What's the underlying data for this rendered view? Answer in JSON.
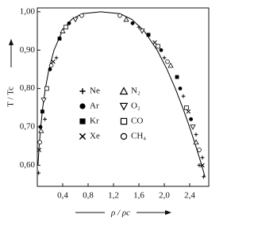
{
  "chart_data": {
    "type": "scatter",
    "xlabel": "ρ / ρc",
    "ylabel": "T / Tc",
    "xlim": [
      0,
      2.7
    ],
    "ylim": [
      0.545,
      1.01
    ],
    "xticks": [
      {
        "value": 0.4,
        "label": "0,4"
      },
      {
        "value": 0.8,
        "label": "0,8"
      },
      {
        "value": 1.2,
        "label": "1,2"
      },
      {
        "value": 1.6,
        "label": "1,6"
      },
      {
        "value": 2.0,
        "label": "2,0"
      },
      {
        "value": 2.4,
        "label": "2,4"
      }
    ],
    "yticks": [
      {
        "value": 0.6,
        "label": "0,60"
      },
      {
        "value": 0.7,
        "label": "0,70"
      },
      {
        "value": 0.8,
        "label": "0,80"
      },
      {
        "value": 0.9,
        "label": "0,90"
      },
      {
        "value": 1.0,
        "label": "1,00"
      }
    ],
    "curve": {
      "color": "#000000",
      "x": [
        0.011,
        0.029,
        0.054,
        0.085,
        0.127,
        0.183,
        0.263,
        0.393,
        0.54,
        0.705,
        1.0,
        1.303,
        1.49,
        1.682,
        1.887,
        2.042,
        2.173,
        2.29,
        2.397,
        2.496,
        2.589,
        2.64
      ],
      "y": [
        0.6,
        0.65,
        0.7,
        0.75,
        0.8,
        0.85,
        0.9,
        0.95,
        0.98,
        0.995,
        1.0,
        0.995,
        0.98,
        0.95,
        0.9,
        0.85,
        0.8,
        0.75,
        0.7,
        0.65,
        0.6,
        0.57
      ]
    },
    "series": [
      {
        "name": "Ne",
        "marker": "plus",
        "color": "#000000",
        "x": [
          0.02,
          0.12,
          0.3,
          1.6,
          2.0,
          2.3,
          2.5,
          2.6,
          2.55,
          2.62
        ],
        "y": [
          0.58,
          0.72,
          0.88,
          0.96,
          0.88,
          0.78,
          0.68,
          0.62,
          0.6,
          0.57
        ]
      },
      {
        "name": "Ar",
        "marker": "dot",
        "color": "#000000",
        "x": [
          0.05,
          0.2,
          0.5,
          1.5,
          1.95,
          2.25,
          2.42
        ],
        "y": [
          0.7,
          0.85,
          0.97,
          0.97,
          0.9,
          0.8,
          0.72
        ]
      },
      {
        "name": "Kr",
        "marker": "square",
        "color": "#000000",
        "x": [
          0.08,
          0.35,
          1.75,
          2.2
        ],
        "y": [
          0.74,
          0.93,
          0.94,
          0.83
        ]
      },
      {
        "name": "Xe",
        "marker": "cross",
        "color": "#000000",
        "x": [
          0.03,
          0.25,
          1.85,
          2.38,
          2.6
        ],
        "y": [
          0.64,
          0.87,
          0.92,
          0.74,
          0.6
        ]
      },
      {
        "name": "N₂",
        "marker": "triangle",
        "color": "#000000",
        "x": [
          0.06,
          0.4,
          1.4,
          2.1,
          2.5
        ],
        "y": [
          0.69,
          0.95,
          0.98,
          0.86,
          0.66
        ]
      },
      {
        "name": "O₂",
        "marker": "triangle-down",
        "color": "#000000",
        "x": [
          0.1,
          0.6,
          1.65,
          2.45
        ],
        "y": [
          0.77,
          0.98,
          0.95,
          0.7
        ]
      },
      {
        "name": "CO",
        "marker": "open-square",
        "color": "#000000",
        "x": [
          0.15,
          0.45,
          1.9,
          2.35
        ],
        "y": [
          0.8,
          0.96,
          0.91,
          0.75
        ]
      },
      {
        "name": "CH₄",
        "marker": "circle",
        "color": "#000000",
        "x": [
          0.04,
          0.22,
          0.7,
          1.3,
          2.05,
          2.55
        ],
        "y": [
          0.66,
          0.86,
          0.99,
          0.99,
          0.87,
          0.64
        ]
      }
    ]
  }
}
